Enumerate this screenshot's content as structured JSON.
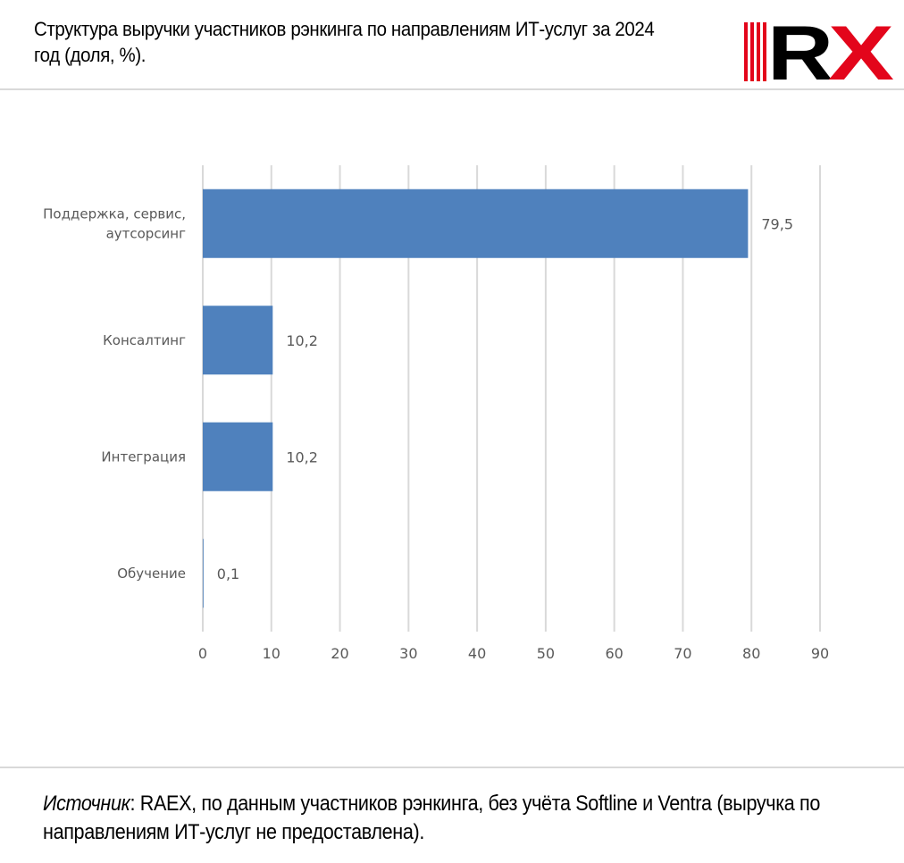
{
  "header": {
    "title": "Структура выручки участников рэнкинга по направлениям ИТ-услуг за 2024 год (доля, %).",
    "logo_text": "RX"
  },
  "colors": {
    "bar": "#4f81bd",
    "grid": "#d9d9d9",
    "axis_text": "#595959",
    "logo_red": "#e3051b",
    "logo_black": "#000000"
  },
  "chart_data": {
    "type": "bar",
    "orientation": "horizontal",
    "categories": [
      "Поддержка, сервис, аутсорсинг",
      "Консалтинг",
      "Интеграция",
      "Обучение"
    ],
    "category_lines": [
      [
        "Поддержка, сервис,",
        "аутсорсинг"
      ],
      [
        "Консалтинг"
      ],
      [
        "Интеграция"
      ],
      [
        "Обучение"
      ]
    ],
    "values": [
      79.5,
      10.2,
      10.2,
      0.1
    ],
    "value_labels": [
      "79,5",
      "10,2",
      "10,2",
      "0,1"
    ],
    "xlim": [
      0,
      90
    ],
    "x_ticks": [
      0,
      10,
      20,
      30,
      40,
      50,
      60,
      70,
      80,
      90
    ],
    "grid": true,
    "legend": "none",
    "title": "",
    "xlabel": "",
    "ylabel": ""
  },
  "footer": {
    "source_label": "Источник",
    "source_text": ": RAEX, по данным участников рэнкинга, без учёта Softline и Ventra (выручка по направлениям ИТ-услуг не предоставлена)."
  }
}
